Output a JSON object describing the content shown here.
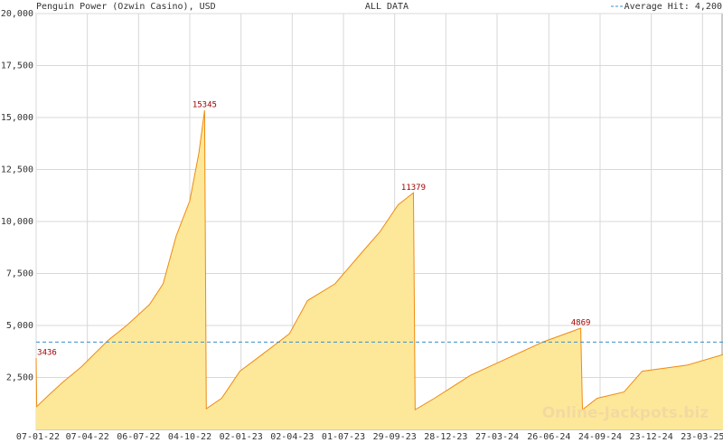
{
  "chart_data": {
    "type": "area",
    "title": "Penguin Power (Ozwin Casino), USD",
    "subtitle": "ALL DATA",
    "watermark": "Online-Jackpots.biz",
    "average": 4200,
    "average_label": "Average Hit: 4,200",
    "average_color": "#3a8fc8",
    "color": "#fde89a",
    "line_color": "#f08a10",
    "annotation_color": "#a00000",
    "grid": true,
    "x": [
      "2022-01-07",
      "2022-01-08",
      "2022-01-31",
      "2022-02-24",
      "2022-03-27",
      "2022-05-14",
      "2022-06-15",
      "2022-07-25",
      "2022-08-18",
      "2022-09-10",
      "2022-10-04",
      "2022-10-20",
      "2022-10-30",
      "2022-11-02",
      "2022-11-29",
      "2022-12-31",
      "2023-02-08",
      "2023-03-28",
      "2023-04-29",
      "2023-06-16",
      "2023-08-02",
      "2023-09-03",
      "2023-10-05",
      "2023-11-01",
      "2023-11-04",
      "2023-12-08",
      "2024-02-09",
      "2024-06-15",
      "2024-08-21",
      "2024-08-24",
      "2024-09-19",
      "2024-11-05",
      "2024-12-07",
      "2025-02-25",
      "2025-04-28"
    ],
    "values": [
      3436,
      1100,
      1700,
      2300,
      3000,
      4300,
      5000,
      6000,
      7000,
      9300,
      11000,
      13300,
      15345,
      1000,
      1500,
      2800,
      3600,
      4600,
      6200,
      7000,
      8500,
      9500,
      10800,
      11379,
      950,
      1500,
      2600,
      4200,
      4869,
      950,
      1500,
      1800,
      2800,
      3100,
      3600
    ],
    "annotations": [
      {
        "x": "2022-01-07",
        "value": 3436
      },
      {
        "x": "2022-10-30",
        "value": 15345
      },
      {
        "x": "2023-11-01",
        "value": 11379
      },
      {
        "x": "2024-08-21",
        "value": 4869
      }
    ],
    "xlim": [
      "2022-01-07",
      "2025-04-28"
    ],
    "xticks": [
      {
        "value": "2022-01-07",
        "label": "07-01-22"
      },
      {
        "value": "2022-04-07",
        "label": "07-04-22"
      },
      {
        "value": "2022-07-06",
        "label": "06-07-22"
      },
      {
        "value": "2022-10-04",
        "label": "04-10-22"
      },
      {
        "value": "2023-01-02",
        "label": "02-01-23"
      },
      {
        "value": "2023-04-02",
        "label": "02-04-23"
      },
      {
        "value": "2023-07-01",
        "label": "01-07-23"
      },
      {
        "value": "2023-09-29",
        "label": "29-09-23"
      },
      {
        "value": "2023-12-28",
        "label": "28-12-23"
      },
      {
        "value": "2024-03-27",
        "label": "27-03-24"
      },
      {
        "value": "2024-06-26",
        "label": "26-06-24"
      },
      {
        "value": "2024-09-24",
        "label": "24-09-24"
      },
      {
        "value": "2024-12-23",
        "label": "23-12-24"
      },
      {
        "value": "2025-03-23",
        "label": "23-03-25"
      }
    ],
    "ylim": [
      0,
      20000
    ],
    "yticks": [
      {
        "value": 2500,
        "label": "2,500"
      },
      {
        "value": 5000,
        "label": "5,000"
      },
      {
        "value": 7500,
        "label": "7,500"
      },
      {
        "value": 10000,
        "label": "10,000"
      },
      {
        "value": 12500,
        "label": "12,500"
      },
      {
        "value": 15000,
        "label": "15,000"
      },
      {
        "value": 17500,
        "label": "17,500"
      },
      {
        "value": 20000,
        "label": "20,000"
      }
    ]
  }
}
